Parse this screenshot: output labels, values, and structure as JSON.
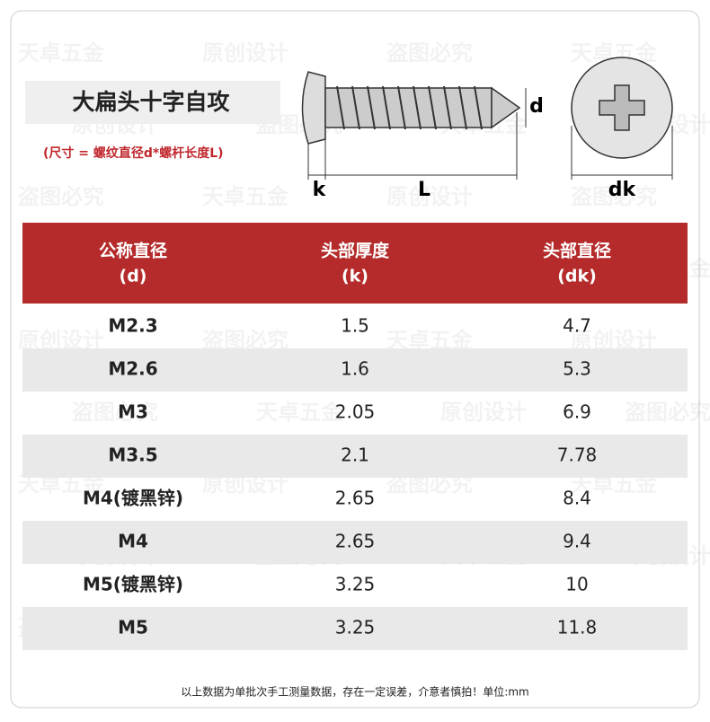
{
  "header": {
    "title": "大扁头十字自攻",
    "subtitle": "(尺寸 = 螺纹直径d*螺杆长度L)"
  },
  "diagram": {
    "d": "d",
    "k": "k",
    "L": "L",
    "dk": "dk"
  },
  "watermarks": [
    "天卓五金",
    "原创设计",
    "盗图必究"
  ],
  "table": {
    "columns": [
      [
        "公称直径",
        "(d)"
      ],
      [
        "头部厚度",
        "(k)"
      ],
      [
        "头部直径",
        "(dk)"
      ]
    ],
    "rows": [
      [
        "M2.3",
        "1.5",
        "4.7"
      ],
      [
        "M2.6",
        "1.6",
        "5.3"
      ],
      [
        "M3",
        "2.05",
        "6.9"
      ],
      [
        "M3.5",
        "2.1",
        "7.78"
      ],
      [
        "M4(镀黑锌)",
        "2.65",
        "8.4"
      ],
      [
        "M4",
        "2.65",
        "9.4"
      ],
      [
        "M5(镀黑锌)",
        "3.25",
        "10"
      ],
      [
        "M5",
        "3.25",
        "11.8"
      ]
    ]
  },
  "footer": "以上数据为单批次手工测量数据，存在一定误差，介意者慎拍！单位:mm"
}
